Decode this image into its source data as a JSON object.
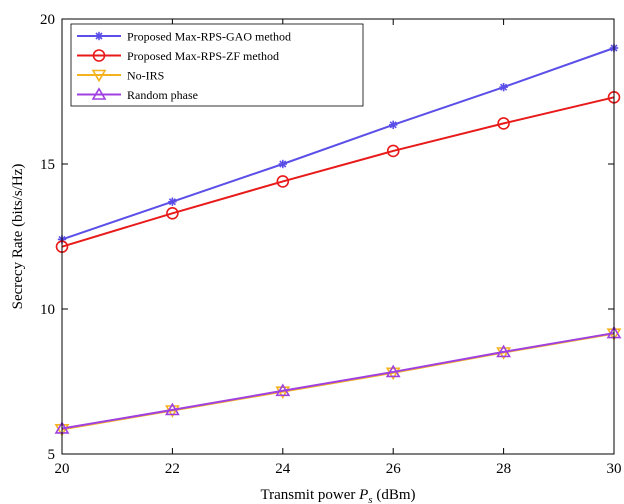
{
  "chart_data": {
    "type": "line",
    "xlabel": "Transmit power",
    "xlabel_symbol": "P",
    "xlabel_symbol_sub": "s",
    "xlabel_unit": "(dBm)",
    "ylabel": "Secrecy Rate (bits/s/Hz)",
    "xlim": [
      20,
      30
    ],
    "ylim": [
      5,
      20
    ],
    "xticks": [
      20,
      22,
      24,
      26,
      28,
      30
    ],
    "yticks": [
      5,
      10,
      15,
      20
    ],
    "grid": false,
    "legend_position": "top-left",
    "x": [
      20,
      22,
      24,
      26,
      28,
      30
    ],
    "series": [
      {
        "name": "Proposed Max-RPS-GAO method",
        "color": "#5b4fe8",
        "marker": "asterisk",
        "values": [
          12.4,
          13.7,
          15.0,
          16.35,
          17.65,
          19.0
        ]
      },
      {
        "name": "Proposed Max-RPS-ZF method",
        "color": "#e81a1a",
        "marker": "circle",
        "values": [
          12.15,
          13.3,
          14.4,
          15.45,
          16.4,
          17.3
        ]
      },
      {
        "name": "No-IRS",
        "color": "#f5b21c",
        "marker": "triangle-down",
        "values": [
          5.85,
          6.5,
          7.15,
          7.8,
          8.5,
          9.15
        ]
      },
      {
        "name": "Random phase",
        "color": "#a040e0",
        "marker": "triangle-up",
        "values": [
          5.88,
          6.52,
          7.18,
          7.83,
          8.52,
          9.17
        ]
      }
    ]
  }
}
